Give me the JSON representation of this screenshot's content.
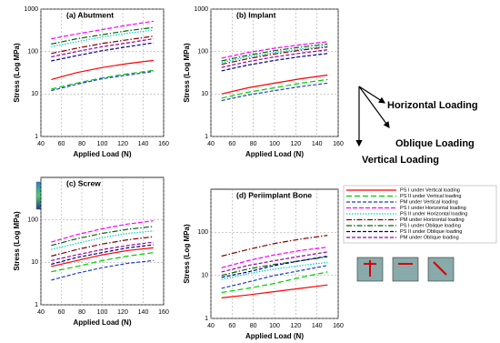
{
  "chart_data": [
    {
      "type": "line",
      "title": "(a) Abutment",
      "x_label": "Applied Load (N)",
      "y_label": "Stress (Log MPa)",
      "x": [
        50,
        75,
        100,
        125,
        150
      ],
      "xlim": [
        40,
        160
      ],
      "xticks": [
        40,
        60,
        80,
        100,
        120,
        140,
        160
      ],
      "ylim": [
        1,
        1000
      ],
      "yticks": [
        1,
        10,
        100,
        1000
      ],
      "log_y": true,
      "grid": true,
      "series": [
        {
          "values": [
            22,
            32,
            42,
            52,
            62
          ]
        },
        {
          "values": [
            13,
            18,
            24,
            30,
            36
          ]
        },
        {
          "values": [
            12,
            17,
            23,
            28,
            34
          ]
        },
        {
          "values": [
            200,
            260,
            330,
            420,
            520
          ]
        },
        {
          "values": [
            130,
            170,
            220,
            270,
            320
          ]
        },
        {
          "values": [
            90,
            120,
            155,
            190,
            230
          ]
        },
        {
          "values": [
            150,
            200,
            250,
            310,
            370
          ]
        },
        {
          "values": [
            60,
            80,
            105,
            130,
            160
          ]
        },
        {
          "values": [
            75,
            100,
            130,
            160,
            200
          ]
        }
      ]
    },
    {
      "type": "line",
      "title": "(b) Implant",
      "x_label": "Applied Load (N)",
      "y_label": "Stress (Log MPa)",
      "x": [
        50,
        75,
        100,
        125,
        150
      ],
      "xlim": [
        40,
        160
      ],
      "xticks": [
        40,
        60,
        80,
        100,
        120,
        140,
        160
      ],
      "ylim": [
        1,
        1000
      ],
      "yticks": [
        1,
        10,
        100,
        1000
      ],
      "log_y": true,
      "grid": true,
      "series": [
        {
          "values": [
            10,
            14,
            18,
            23,
            28
          ]
        },
        {
          "values": [
            8,
            11,
            14,
            18,
            22
          ]
        },
        {
          "values": [
            7,
            9.5,
            12,
            15,
            18
          ]
        },
        {
          "values": [
            70,
            95,
            120,
            145,
            170
          ]
        },
        {
          "values": [
            55,
            75,
            95,
            115,
            135
          ]
        },
        {
          "values": [
            50,
            68,
            88,
            108,
            128
          ]
        },
        {
          "values": [
            60,
            82,
            105,
            128,
            150
          ]
        },
        {
          "values": [
            35,
            48,
            62,
            76,
            90
          ]
        },
        {
          "values": [
            42,
            58,
            75,
            92,
            110
          ]
        }
      ]
    },
    {
      "type": "line",
      "title": "(c) Screw",
      "x_label": "Applied Load (N)",
      "y_label": "Stress (Log MPa)",
      "x": [
        50,
        75,
        100,
        125,
        150
      ],
      "xlim": [
        40,
        160
      ],
      "xticks": [
        40,
        60,
        80,
        100,
        120,
        140,
        160
      ],
      "ylim": [
        1,
        1000
      ],
      "yticks": [
        1,
        10,
        100
      ],
      "log_y": true,
      "grid": true,
      "series": [
        {
          "values": [
            8,
            11,
            15,
            19,
            22
          ]
        },
        {
          "values": [
            6,
            8,
            11,
            14,
            17
          ]
        },
        {
          "values": [
            3.8,
            5.5,
            7.5,
            9.5,
            11
          ]
        },
        {
          "values": [
            30,
            45,
            62,
            80,
            95
          ]
        },
        {
          "values": [
            20,
            28,
            38,
            48,
            55
          ]
        },
        {
          "values": [
            14,
            20,
            27,
            34,
            40
          ]
        },
        {
          "values": [
            25,
            36,
            48,
            60,
            70
          ]
        },
        {
          "values": [
            9,
            13,
            17,
            22,
            26
          ]
        },
        {
          "values": [
            11,
            15,
            20,
            25,
            30
          ]
        }
      ]
    },
    {
      "type": "line",
      "title": "(d) Periimplant Bone",
      "x_label": "Applied Load (N)",
      "y_label": "Stress (Log MPa)",
      "x": [
        50,
        75,
        100,
        125,
        150
      ],
      "xlim": [
        40,
        160
      ],
      "xticks": [
        40,
        60,
        80,
        100,
        120,
        140,
        160
      ],
      "ylim": [
        1,
        1000
      ],
      "yticks": [
        1,
        10,
        100
      ],
      "log_y": true,
      "grid": true,
      "series": [
        {
          "values": [
            3,
            3.5,
            4.2,
            5,
            6
          ]
        },
        {
          "values": [
            4,
            5,
            6.5,
            9,
            12
          ]
        },
        {
          "values": [
            5,
            7,
            10,
            13,
            17
          ]
        },
        {
          "values": [
            15,
            22,
            30,
            38,
            45
          ]
        },
        {
          "values": [
            8,
            11,
            14,
            17,
            20
          ]
        },
        {
          "values": [
            28,
            40,
            55,
            70,
            85
          ]
        },
        {
          "values": [
            10,
            14,
            18,
            22,
            27
          ]
        },
        {
          "values": [
            9,
            12,
            17,
            22,
            28
          ]
        },
        {
          "values": [
            12,
            17,
            22,
            28,
            35
          ]
        }
      ]
    }
  ],
  "legend": [
    {
      "name": "PS I under Vertical loading",
      "color": "#ff0000",
      "dash": "none"
    },
    {
      "name": "PS II under Vertical loading",
      "color": "#00cc00",
      "dash": "6 3"
    },
    {
      "name": "PM under Vertical loading",
      "color": "#1f3fcc",
      "dash": "4 2"
    },
    {
      "name": "PS I under Horizontal loading",
      "color": "#ff00ff",
      "dash": "5 2"
    },
    {
      "name": "PS II under Horizontal loading",
      "color": "#00cccc",
      "dash": "1.5 1.5"
    },
    {
      "name": "PM under Horizontal loading",
      "color": "#800000",
      "dash": "6 2 1.5 2"
    },
    {
      "name": "PS I under Oblique loading",
      "color": "#006600",
      "dash": "6 2 1.5 2"
    },
    {
      "name": "PS II under Oblique loading",
      "color": "#000080",
      "dash": "4 2"
    },
    {
      "name": "PM under Oblique loading",
      "color": "#990099",
      "dash": "4 2"
    }
  ],
  "diagram": {
    "horizontal": "Horizontal Loading",
    "oblique": "Oblique Loading",
    "vertical": "Vertical Loading"
  }
}
